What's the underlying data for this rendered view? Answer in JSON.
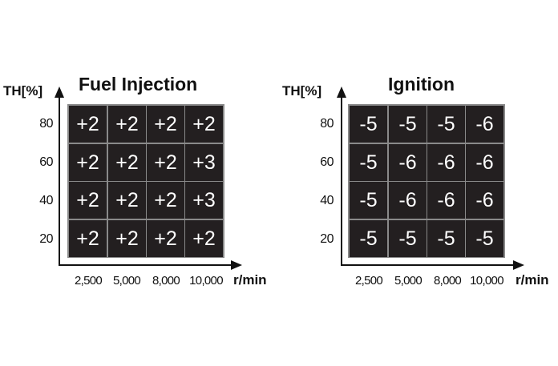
{
  "chart_data": [
    {
      "type": "heatmap",
      "title": "Fuel Injection",
      "ylabel": "TH[%]",
      "xlabel": "r/min",
      "x": [
        "2,500",
        "5,000",
        "8,000",
        "10,000"
      ],
      "y": [
        "80",
        "60",
        "40",
        "20"
      ],
      "values": [
        [
          "+2",
          "+2",
          "+2",
          "+2"
        ],
        [
          "+2",
          "+2",
          "+2",
          "+3"
        ],
        [
          "+2",
          "+2",
          "+2",
          "+3"
        ],
        [
          "+2",
          "+2",
          "+2",
          "+2"
        ]
      ]
    },
    {
      "type": "heatmap",
      "title": "Ignition",
      "ylabel": "TH[%]",
      "xlabel": "r/min",
      "x": [
        "2,500",
        "5,000",
        "8,000",
        "10,000"
      ],
      "y": [
        "80",
        "60",
        "40",
        "20"
      ],
      "values": [
        [
          "-5",
          "-5",
          "-5",
          "-6"
        ],
        [
          "-5",
          "-6",
          "-6",
          "-6"
        ],
        [
          "-5",
          "-6",
          "-6",
          "-6"
        ],
        [
          "-5",
          "-5",
          "-5",
          "-5"
        ]
      ]
    }
  ]
}
